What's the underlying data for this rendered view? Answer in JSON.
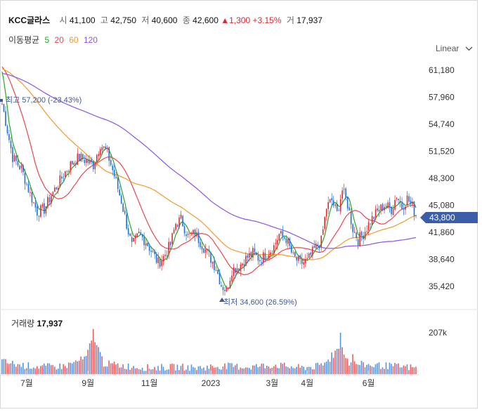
{
  "header": {
    "name": "KCC글라스",
    "open_label": "시",
    "open": "41,100",
    "high_label": "고",
    "high": "42,750",
    "low_label": "저",
    "low": "40,600",
    "close_label": "종",
    "close": "42,600",
    "change": "▲1,300",
    "change_pct": "+3.15%",
    "volume_label": "거",
    "volume": "17,937"
  },
  "moving_average": {
    "label": "이동평균",
    "periods": [
      {
        "value": "5",
        "color": "#2aa52a"
      },
      {
        "value": "20",
        "color": "#e8474b"
      },
      {
        "value": "60",
        "color": "#f09a2d"
      },
      {
        "value": "120",
        "color": "#8e53e6"
      }
    ]
  },
  "scale_button": "Linear",
  "chart_data": {
    "type": "candlestick",
    "y_ticks": [
      "61,180",
      "57,960",
      "54,740",
      "51,520",
      "48,300",
      "45,080",
      "41,860",
      "38,640",
      "35,420"
    ],
    "y_tick_values": [
      61180,
      57960,
      54740,
      51520,
      48300,
      45080,
      41860,
      38640,
      35420
    ],
    "x_ticks": [
      "7월",
      "9월",
      "11월",
      "2023",
      "3월",
      "4월",
      "6월"
    ],
    "current_price": "43,800",
    "max_annotation": "최고 57,200 (-23.43%)",
    "min_annotation": "최저 34,600 (26.59%)",
    "volume_title": "거래량",
    "volume_value": "17,937",
    "volume_tick": "207k",
    "up_color": "#e0282e",
    "down_color": "#1f6fd1",
    "price_keypoints": [
      [
        0,
        57200
      ],
      [
        6,
        50800
      ],
      [
        11,
        49400
      ],
      [
        16,
        46400
      ],
      [
        20,
        44300
      ],
      [
        24,
        44600
      ],
      [
        28,
        46300
      ],
      [
        32,
        47600
      ],
      [
        36,
        49100
      ],
      [
        40,
        50200
      ],
      [
        44,
        50800
      ],
      [
        48,
        50400
      ],
      [
        52,
        49900
      ],
      [
        56,
        52400
      ],
      [
        60,
        51300
      ],
      [
        64,
        48600
      ],
      [
        68,
        45600
      ],
      [
        71,
        42800
      ],
      [
        74,
        40200
      ],
      [
        78,
        41600
      ],
      [
        82,
        40800
      ],
      [
        86,
        39300
      ],
      [
        89,
        38200
      ],
      [
        92,
        38900
      ],
      [
        96,
        40400
      ],
      [
        99,
        42900
      ],
      [
        102,
        43400
      ],
      [
        106,
        41400
      ],
      [
        110,
        41700
      ],
      [
        114,
        40400
      ],
      [
        118,
        39100
      ],
      [
        122,
        37600
      ],
      [
        125,
        35600
      ],
      [
        128,
        34900
      ],
      [
        131,
        37400
      ],
      [
        135,
        37800
      ],
      [
        139,
        38700
      ],
      [
        143,
        39400
      ],
      [
        147,
        38600
      ],
      [
        151,
        39300
      ],
      [
        155,
        40200
      ],
      [
        158,
        41600
      ],
      [
        162,
        41100
      ],
      [
        166,
        38900
      ],
      [
        170,
        38200
      ],
      [
        174,
        38400
      ],
      [
        178,
        39800
      ],
      [
        182,
        40800
      ],
      [
        185,
        44800
      ],
      [
        188,
        45700
      ],
      [
        191,
        44100
      ],
      [
        194,
        46900
      ],
      [
        197,
        45200
      ],
      [
        200,
        42300
      ],
      [
        203,
        41000
      ],
      [
        206,
        41700
      ],
      [
        210,
        43200
      ],
      [
        214,
        44300
      ],
      [
        218,
        45100
      ],
      [
        222,
        44600
      ],
      [
        225,
        46300
      ],
      [
        228,
        44900
      ],
      [
        231,
        45900
      ],
      [
        234,
        44900
      ],
      [
        236,
        43800
      ]
    ],
    "volume_keypoints": [
      [
        0,
        14
      ],
      [
        10,
        10
      ],
      [
        24,
        8
      ],
      [
        36,
        9
      ],
      [
        48,
        18
      ],
      [
        52,
        44
      ],
      [
        58,
        12
      ],
      [
        70,
        9
      ],
      [
        84,
        7
      ],
      [
        100,
        8
      ],
      [
        112,
        7
      ],
      [
        126,
        9
      ],
      [
        140,
        8
      ],
      [
        156,
        10
      ],
      [
        170,
        7
      ],
      [
        182,
        9
      ],
      [
        188,
        18
      ],
      [
        193,
        34
      ],
      [
        198,
        12
      ],
      [
        210,
        10
      ],
      [
        222,
        9
      ],
      [
        236,
        7
      ]
    ],
    "volume_max": 70
  }
}
